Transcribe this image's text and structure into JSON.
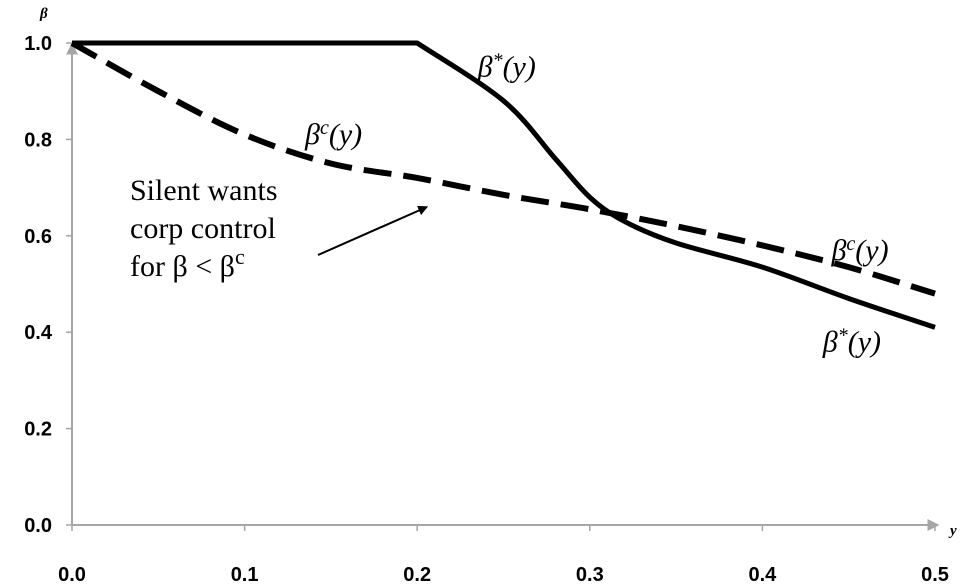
{
  "chart_data": {
    "type": "line",
    "xlabel": "y",
    "ylabel": "β",
    "xlim": [
      0,
      0.5
    ],
    "ylim": [
      0,
      1.0
    ],
    "x_ticks": [
      "0.0",
      "0.1",
      "0.2",
      "0.3",
      "0.4",
      "0.5"
    ],
    "y_ticks": [
      "0.0",
      "0.2",
      "0.4",
      "0.6",
      "0.8",
      "1.0"
    ],
    "grid": false,
    "series": [
      {
        "name": "β*(y)",
        "style": "solid",
        "color": "#000000",
        "points": [
          [
            0.0,
            1.0
          ],
          [
            0.2,
            1.0
          ],
          [
            0.25,
            0.88
          ],
          [
            0.28,
            0.76
          ],
          [
            0.3,
            0.68
          ],
          [
            0.32,
            0.63
          ],
          [
            0.35,
            0.585
          ],
          [
            0.4,
            0.535
          ],
          [
            0.45,
            0.47
          ],
          [
            0.5,
            0.41
          ]
        ]
      },
      {
        "name": "βc(y)",
        "style": "dashed",
        "color": "#000000",
        "points": [
          [
            0.0,
            1.0
          ],
          [
            0.05,
            0.9
          ],
          [
            0.1,
            0.81
          ],
          [
            0.15,
            0.75
          ],
          [
            0.2,
            0.72
          ],
          [
            0.25,
            0.685
          ],
          [
            0.3,
            0.655
          ],
          [
            0.35,
            0.62
          ],
          [
            0.4,
            0.58
          ],
          [
            0.45,
            0.535
          ],
          [
            0.5,
            0.48
          ]
        ]
      }
    ],
    "curve_labels": [
      {
        "base": "β",
        "sup": "*",
        "tail": "(y)",
        "at": [
          0.235,
          0.93
        ]
      },
      {
        "base": "β",
        "sup": "c",
        "tail": "(y)",
        "at": [
          0.135,
          0.79
        ]
      },
      {
        "base": "β",
        "sup": "c",
        "tail": "(y)",
        "at": [
          0.44,
          0.55
        ]
      },
      {
        "base": "β",
        "sup": "*",
        "tail": "(y)",
        "at": [
          0.435,
          0.36
        ]
      }
    ],
    "annotation": {
      "lines": [
        "Silent wants",
        "corp control"
      ],
      "last_line_prefix": "for β < β",
      "last_line_sup": "c",
      "arrow_to": [
        0.185,
        0.68
      ]
    }
  }
}
